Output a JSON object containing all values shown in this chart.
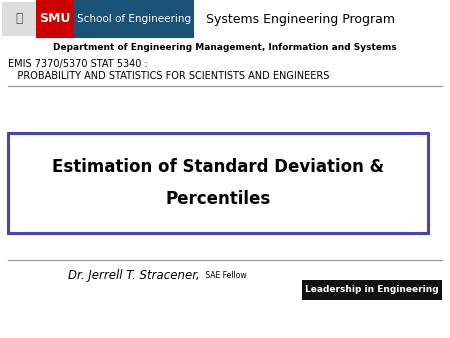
{
  "background_color": "#ffffff",
  "smu_red": "#cc0000",
  "smu_blue": "#1a5276",
  "school_text": "School of Engineering",
  "program_text": "Systems Engineering Program",
  "dept_text": "Department of Engineering Management, Information and Systems",
  "course_line1": "EMIS 7370/5370 STAT 5340 :",
  "course_line2": "   PROBABILITY AND STATISTICS FOR SCIENTISTS AND ENGINEERS",
  "title_line1": "Estimation of Standard Deviation &",
  "title_line2": "Percentiles",
  "title_box_edge_color": "#4444bb",
  "author_main": "Dr. Jerrell T. Stracener,",
  "author_sub": " SAE Fellow",
  "leadership_text": "Leadership in Engineering",
  "leadership_bg": "#111111",
  "leadership_text_color": "#ffffff",
  "hr_color": "#999999",
  "fig_width": 4.5,
  "fig_height": 3.38,
  "dpi": 100
}
